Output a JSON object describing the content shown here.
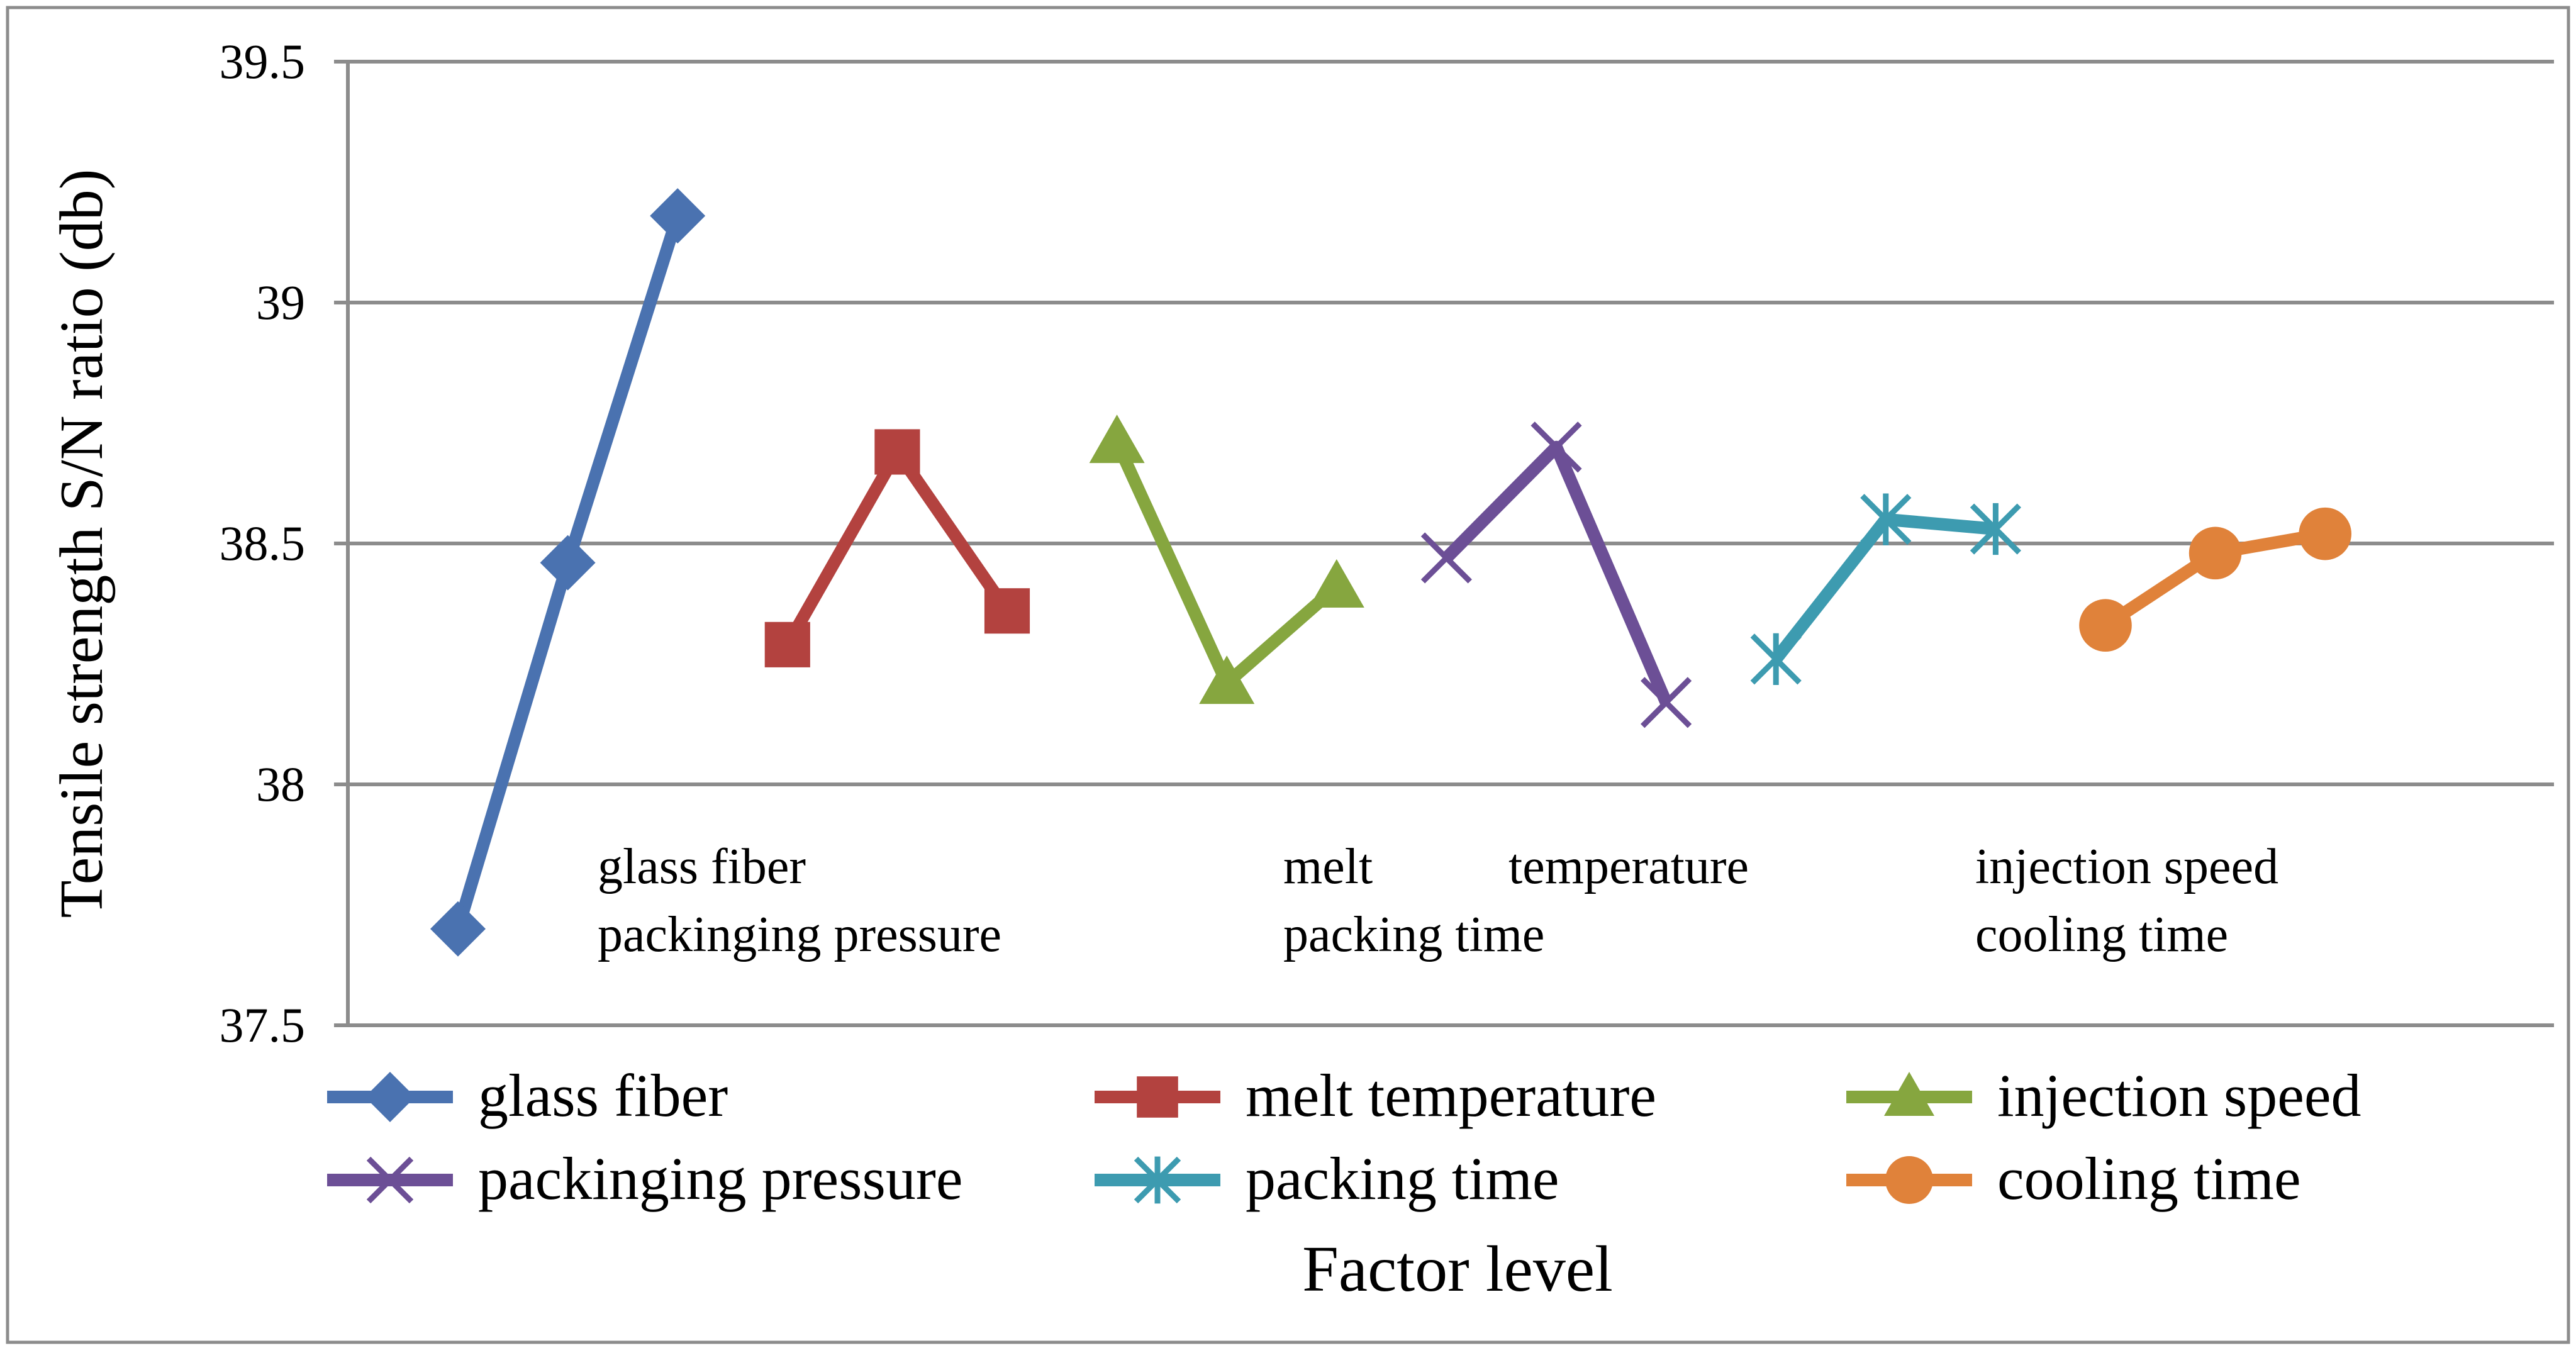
{
  "chart_data": {
    "type": "line",
    "title": "",
    "ylabel": "Tensile strength S/N ratio (db)",
    "xlabel": "Factor level",
    "ylim": [
      37.5,
      39.5
    ],
    "yticks": [
      "37.5",
      "38",
      "38.5",
      "39",
      "39.5"
    ],
    "grid": true,
    "legend_position": "bottom",
    "series": [
      {
        "name": "glass fiber",
        "x": [
          1,
          2,
          3
        ],
        "values": [
          37.7,
          38.46,
          39.18
        ],
        "color": "#4a72b0",
        "marker": "diamond"
      },
      {
        "name": "melt temperature",
        "x": [
          4,
          5,
          6
        ],
        "values": [
          38.29,
          38.69,
          38.36
        ],
        "color": "#b3423f",
        "marker": "square"
      },
      {
        "name": "injection speed",
        "x": [
          7,
          8,
          9
        ],
        "values": [
          38.71,
          38.21,
          38.41
        ],
        "color": "#86a63f",
        "marker": "triangle"
      },
      {
        "name": "packinging pressure",
        "x": [
          10,
          11,
          12
        ],
        "values": [
          38.47,
          38.7,
          38.17
        ],
        "color": "#6c4f96",
        "marker": "x"
      },
      {
        "name": "packing time",
        "x": [
          13,
          14,
          15
        ],
        "values": [
          38.26,
          38.55,
          38.53
        ],
        "color": "#3d9bb0",
        "marker": "asterisk"
      },
      {
        "name": "cooling time",
        "x": [
          16,
          17,
          18
        ],
        "values": [
          38.33,
          38.48,
          38.52
        ],
        "color": "#e0823a",
        "marker": "circle"
      }
    ],
    "annotations": [
      {
        "text": "glass fiber"
      },
      {
        "text": "packinging pressure"
      },
      {
        "text": "melt"
      },
      {
        "text": "temperature"
      },
      {
        "text": "packing time"
      },
      {
        "text": "injection speed"
      },
      {
        "text": "cooling time"
      }
    ]
  }
}
